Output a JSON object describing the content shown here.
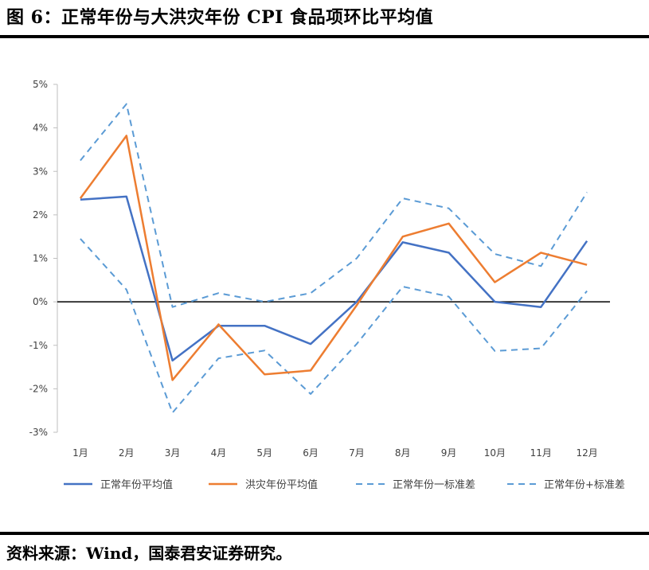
{
  "title": "图 6：正常年份与大洪灾年份 CPI 食品项环比平均值",
  "source": "资料来源：Wind，国泰君安证券研究。",
  "chart_data": {
    "type": "line",
    "title": "",
    "xlabel": "",
    "ylabel": "",
    "categories": [
      "1月",
      "2月",
      "3月",
      "4月",
      "5月",
      "6月",
      "7月",
      "8月",
      "9月",
      "10月",
      "11月",
      "12月"
    ],
    "y_tick_labels": [
      "-3%",
      "-2%",
      "-1%",
      "0%",
      "1%",
      "2%",
      "3%",
      "4%",
      "5%"
    ],
    "ylim": [
      -3,
      5
    ],
    "grid": false,
    "legend_position": "bottom",
    "series": [
      {
        "name": "正常年份平均值",
        "color": "#4472C4",
        "dash": "solid",
        "values": [
          2.35,
          2.42,
          -1.35,
          -0.55,
          -0.55,
          -0.97,
          0.0,
          1.37,
          1.13,
          0.0,
          -0.12,
          1.4
        ]
      },
      {
        "name": "洪灾年份平均值",
        "color": "#ED7D31",
        "dash": "solid",
        "values": [
          2.38,
          3.82,
          -1.8,
          -0.52,
          -1.67,
          -1.58,
          -0.08,
          1.5,
          1.8,
          0.45,
          1.13,
          0.85
        ]
      },
      {
        "name": "正常年份一标准差",
        "color": "#5B9BD5",
        "dash": "dashed",
        "values": [
          1.45,
          0.28,
          -2.55,
          -1.3,
          -1.12,
          -2.12,
          -0.97,
          0.35,
          0.12,
          -1.13,
          -1.07,
          0.25
        ]
      },
      {
        "name": "正常年份+标准差",
        "color": "#5B9BD5",
        "dash": "dashed",
        "values": [
          3.25,
          4.55,
          -0.12,
          0.2,
          0.0,
          0.2,
          1.0,
          2.38,
          2.15,
          1.1,
          0.82,
          2.52
        ]
      }
    ]
  }
}
